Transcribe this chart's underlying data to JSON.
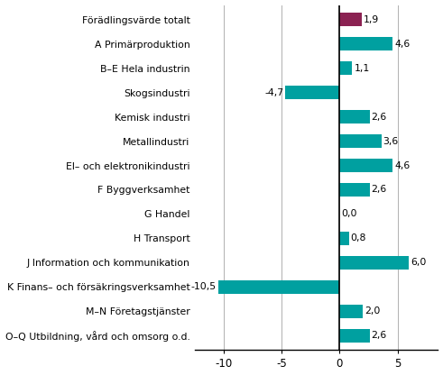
{
  "categories": [
    "Förädlingsvärde totalt",
    "A Primärproduktion",
    "B–E Hela industrin",
    "Skogsindustri",
    "Kemisk industri",
    "Metallindustri",
    "El– och elektronikindustri",
    "F Byggverksamhet",
    "G Handel",
    "H Transport",
    "J Information och kommunikation",
    "K Finans– och försäkringsverksamhet",
    "M–N Företagstjänster",
    "O–Q Utbildning, vård och omsorg o.d."
  ],
  "values": [
    1.9,
    4.6,
    1.1,
    -4.7,
    2.6,
    3.6,
    4.6,
    2.6,
    0.0,
    0.8,
    6.0,
    -10.5,
    2.0,
    2.6
  ],
  "colors": [
    "#8B2252",
    "#00a0a0",
    "#00a0a0",
    "#00a0a0",
    "#00a0a0",
    "#00a0a0",
    "#00a0a0",
    "#00a0a0",
    "#00a0a0",
    "#00a0a0",
    "#00a0a0",
    "#00a0a0",
    "#00a0a0",
    "#00a0a0"
  ],
  "xlim": [
    -12.5,
    8.5
  ],
  "xticks": [
    -10,
    -5,
    0,
    5
  ],
  "background_color": "#ffffff",
  "bar_height": 0.55,
  "label_fontsize": 7.8,
  "tick_fontsize": 8.5,
  "value_fontsize": 7.8
}
